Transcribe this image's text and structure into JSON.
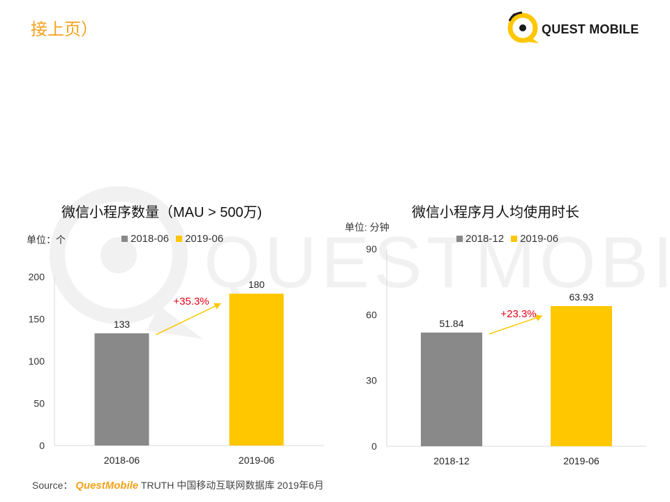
{
  "page": {
    "title": "接上页）"
  },
  "logo": {
    "text": "QUEST MOBILE",
    "icon": "questmobile-q-icon"
  },
  "watermark": {
    "text": "QUESTMOBILE"
  },
  "charts": [
    {
      "title": "微信小程序数量（MAU > 500万)",
      "unit": "单位：个",
      "legend": [
        "2018-06",
        "2019-06"
      ],
      "growth_label": "+35.3%"
    },
    {
      "title": "微信小程序月人均使用时长",
      "unit": "单位: 分钟",
      "legend": [
        "2018-12",
        "2019-06"
      ],
      "growth_label": "+23.3%"
    }
  ],
  "chart_data": [
    {
      "type": "bar",
      "title": "微信小程序数量（MAU > 500万)",
      "categories": [
        "2018-06",
        "2019-06"
      ],
      "values": [
        133,
        180
      ],
      "ylim": [
        0,
        200
      ],
      "yticks": [
        0,
        50,
        100,
        150,
        200
      ],
      "colors": [
        "#898989",
        "#ffc700"
      ],
      "legend_position": "top",
      "grid": false
    },
    {
      "type": "bar",
      "title": "微信小程序月人均使用时长",
      "categories": [
        "2018-12",
        "2019-06"
      ],
      "values": [
        51.84,
        63.93
      ],
      "ylim": [
        0,
        90
      ],
      "yticks": [
        0,
        30,
        60,
        90
      ],
      "colors": [
        "#898989",
        "#ffc700"
      ],
      "legend_position": "top",
      "grid": false
    }
  ],
  "colors": {
    "accent": "#f3a21b",
    "bar_gray": "#898989",
    "bar_yellow": "#ffc700",
    "growth_red": "#e60012",
    "arrow_yellow": "#ffc700"
  },
  "source": {
    "label": "Source：",
    "brand": "QuestMobile",
    "rest": "TRUTH 中国移动互联网数据库 2019年6月"
  }
}
